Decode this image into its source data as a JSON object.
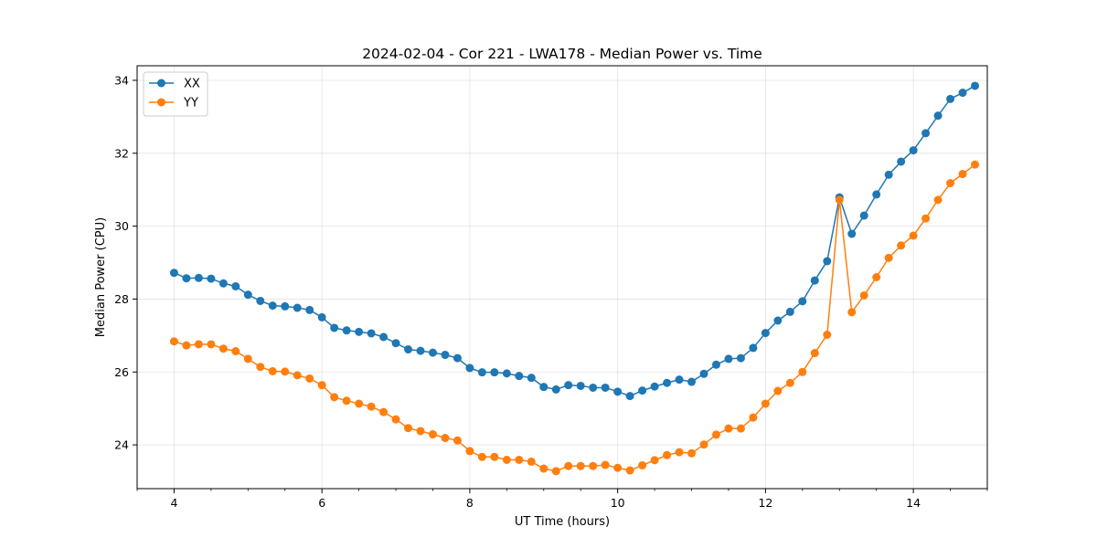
{
  "chart_data": {
    "type": "line",
    "title": "2024-02-04 - Cor 221 - LWA178 - Median Power vs. Time",
    "xlabel": "UT Time (hours)",
    "ylabel": "Median Power (CPU)",
    "xlim": [
      3.5,
      15.0
    ],
    "ylim": [
      22.8,
      34.4
    ],
    "xticks": [
      4,
      6,
      8,
      10,
      12,
      14
    ],
    "yticks": [
      24,
      26,
      28,
      30,
      32,
      34
    ],
    "grid": true,
    "legend_position": "top-left",
    "x": [
      4.0,
      4.1667,
      4.3333,
      4.5,
      4.6667,
      4.8333,
      5.0,
      5.1667,
      5.3333,
      5.5,
      5.6667,
      5.8333,
      6.0,
      6.1667,
      6.3333,
      6.5,
      6.6667,
      6.8333,
      7.0,
      7.1667,
      7.3333,
      7.5,
      7.6667,
      7.8333,
      8.0,
      8.1667,
      8.3333,
      8.5,
      8.6667,
      8.8333,
      9.0,
      9.1667,
      9.3333,
      9.5,
      9.6667,
      9.8333,
      10.0,
      10.1667,
      10.3333,
      10.5,
      10.6667,
      10.8333,
      11.0,
      11.1667,
      11.3333,
      11.5,
      11.6667,
      11.8333,
      12.0,
      12.1667,
      12.3333,
      12.5,
      12.6667,
      12.8333,
      13.0,
      13.1667,
      13.3333,
      13.5,
      13.6667,
      13.8333,
      14.0,
      14.1667,
      14.3333,
      14.5,
      14.6667,
      14.8333
    ],
    "series": [
      {
        "name": "XX",
        "color": "#1f77b4",
        "values": [
          28.72,
          28.57,
          28.58,
          28.56,
          28.43,
          28.35,
          28.12,
          27.95,
          27.82,
          27.8,
          27.76,
          27.7,
          27.5,
          27.21,
          27.14,
          27.1,
          27.06,
          26.96,
          26.79,
          26.62,
          26.58,
          26.53,
          26.47,
          26.38,
          26.11,
          25.99,
          25.99,
          25.96,
          25.89,
          25.84,
          25.59,
          25.52,
          25.64,
          25.62,
          25.57,
          25.57,
          25.46,
          25.34,
          25.49,
          25.6,
          25.7,
          25.79,
          25.73,
          25.95,
          26.2,
          26.36,
          26.38,
          26.66,
          27.07,
          27.41,
          27.65,
          27.94,
          28.51,
          29.04,
          30.79,
          29.79,
          30.29,
          30.87,
          31.41,
          31.77,
          32.08,
          32.55,
          33.03,
          33.49,
          33.66,
          33.85
        ]
      },
      {
        "name": "YY",
        "color": "#ff7f0e",
        "values": [
          26.84,
          26.73,
          26.76,
          26.76,
          26.64,
          26.57,
          26.36,
          26.14,
          26.02,
          26.01,
          25.91,
          25.82,
          25.64,
          25.31,
          25.21,
          25.13,
          25.05,
          24.9,
          24.7,
          24.46,
          24.38,
          24.29,
          24.19,
          24.12,
          23.83,
          23.67,
          23.67,
          23.59,
          23.59,
          23.54,
          23.35,
          23.28,
          23.42,
          23.42,
          23.42,
          23.45,
          23.37,
          23.3,
          23.44,
          23.58,
          23.72,
          23.8,
          23.77,
          24.01,
          24.28,
          24.45,
          24.45,
          24.75,
          25.13,
          25.48,
          25.7,
          26.0,
          26.52,
          27.02,
          30.72,
          27.64,
          28.1,
          28.6,
          29.13,
          29.47,
          29.74,
          30.21,
          30.72,
          31.18,
          31.43,
          31.69
        ]
      }
    ]
  }
}
